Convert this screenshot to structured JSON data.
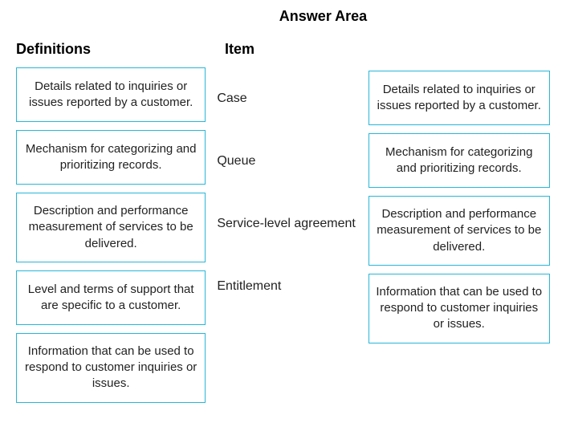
{
  "title": "Answer Area",
  "headers": {
    "definitions": "Definitions",
    "item": "Item"
  },
  "definitions": [
    "Details related to inquiries or issues reported by a customer.",
    "Mechanism for categorizing and prioritizing records.",
    "Description and performance measurement of services to be delivered.",
    "Level and terms of support that are specific to a customer.",
    "Information that can be used to respond to customer inquiries or issues."
  ],
  "items": [
    "Case",
    "Queue",
    "Service-level agreement",
    "Entitlement"
  ],
  "answers": [
    "Details related to inquiries or issues reported by a customer.",
    "Mechanism for categorizing and prioritizing records.",
    "Description and performance measurement of services to be delivered.",
    "Information that can be used to respond to customer inquiries or issues."
  ],
  "styles": {
    "box_border_color": "#29b6d8",
    "background_color": "#ffffff",
    "text_color": "#222222",
    "title_fontsize": 18,
    "header_fontsize": 18,
    "box_fontsize": 15,
    "item_fontsize": 16
  }
}
